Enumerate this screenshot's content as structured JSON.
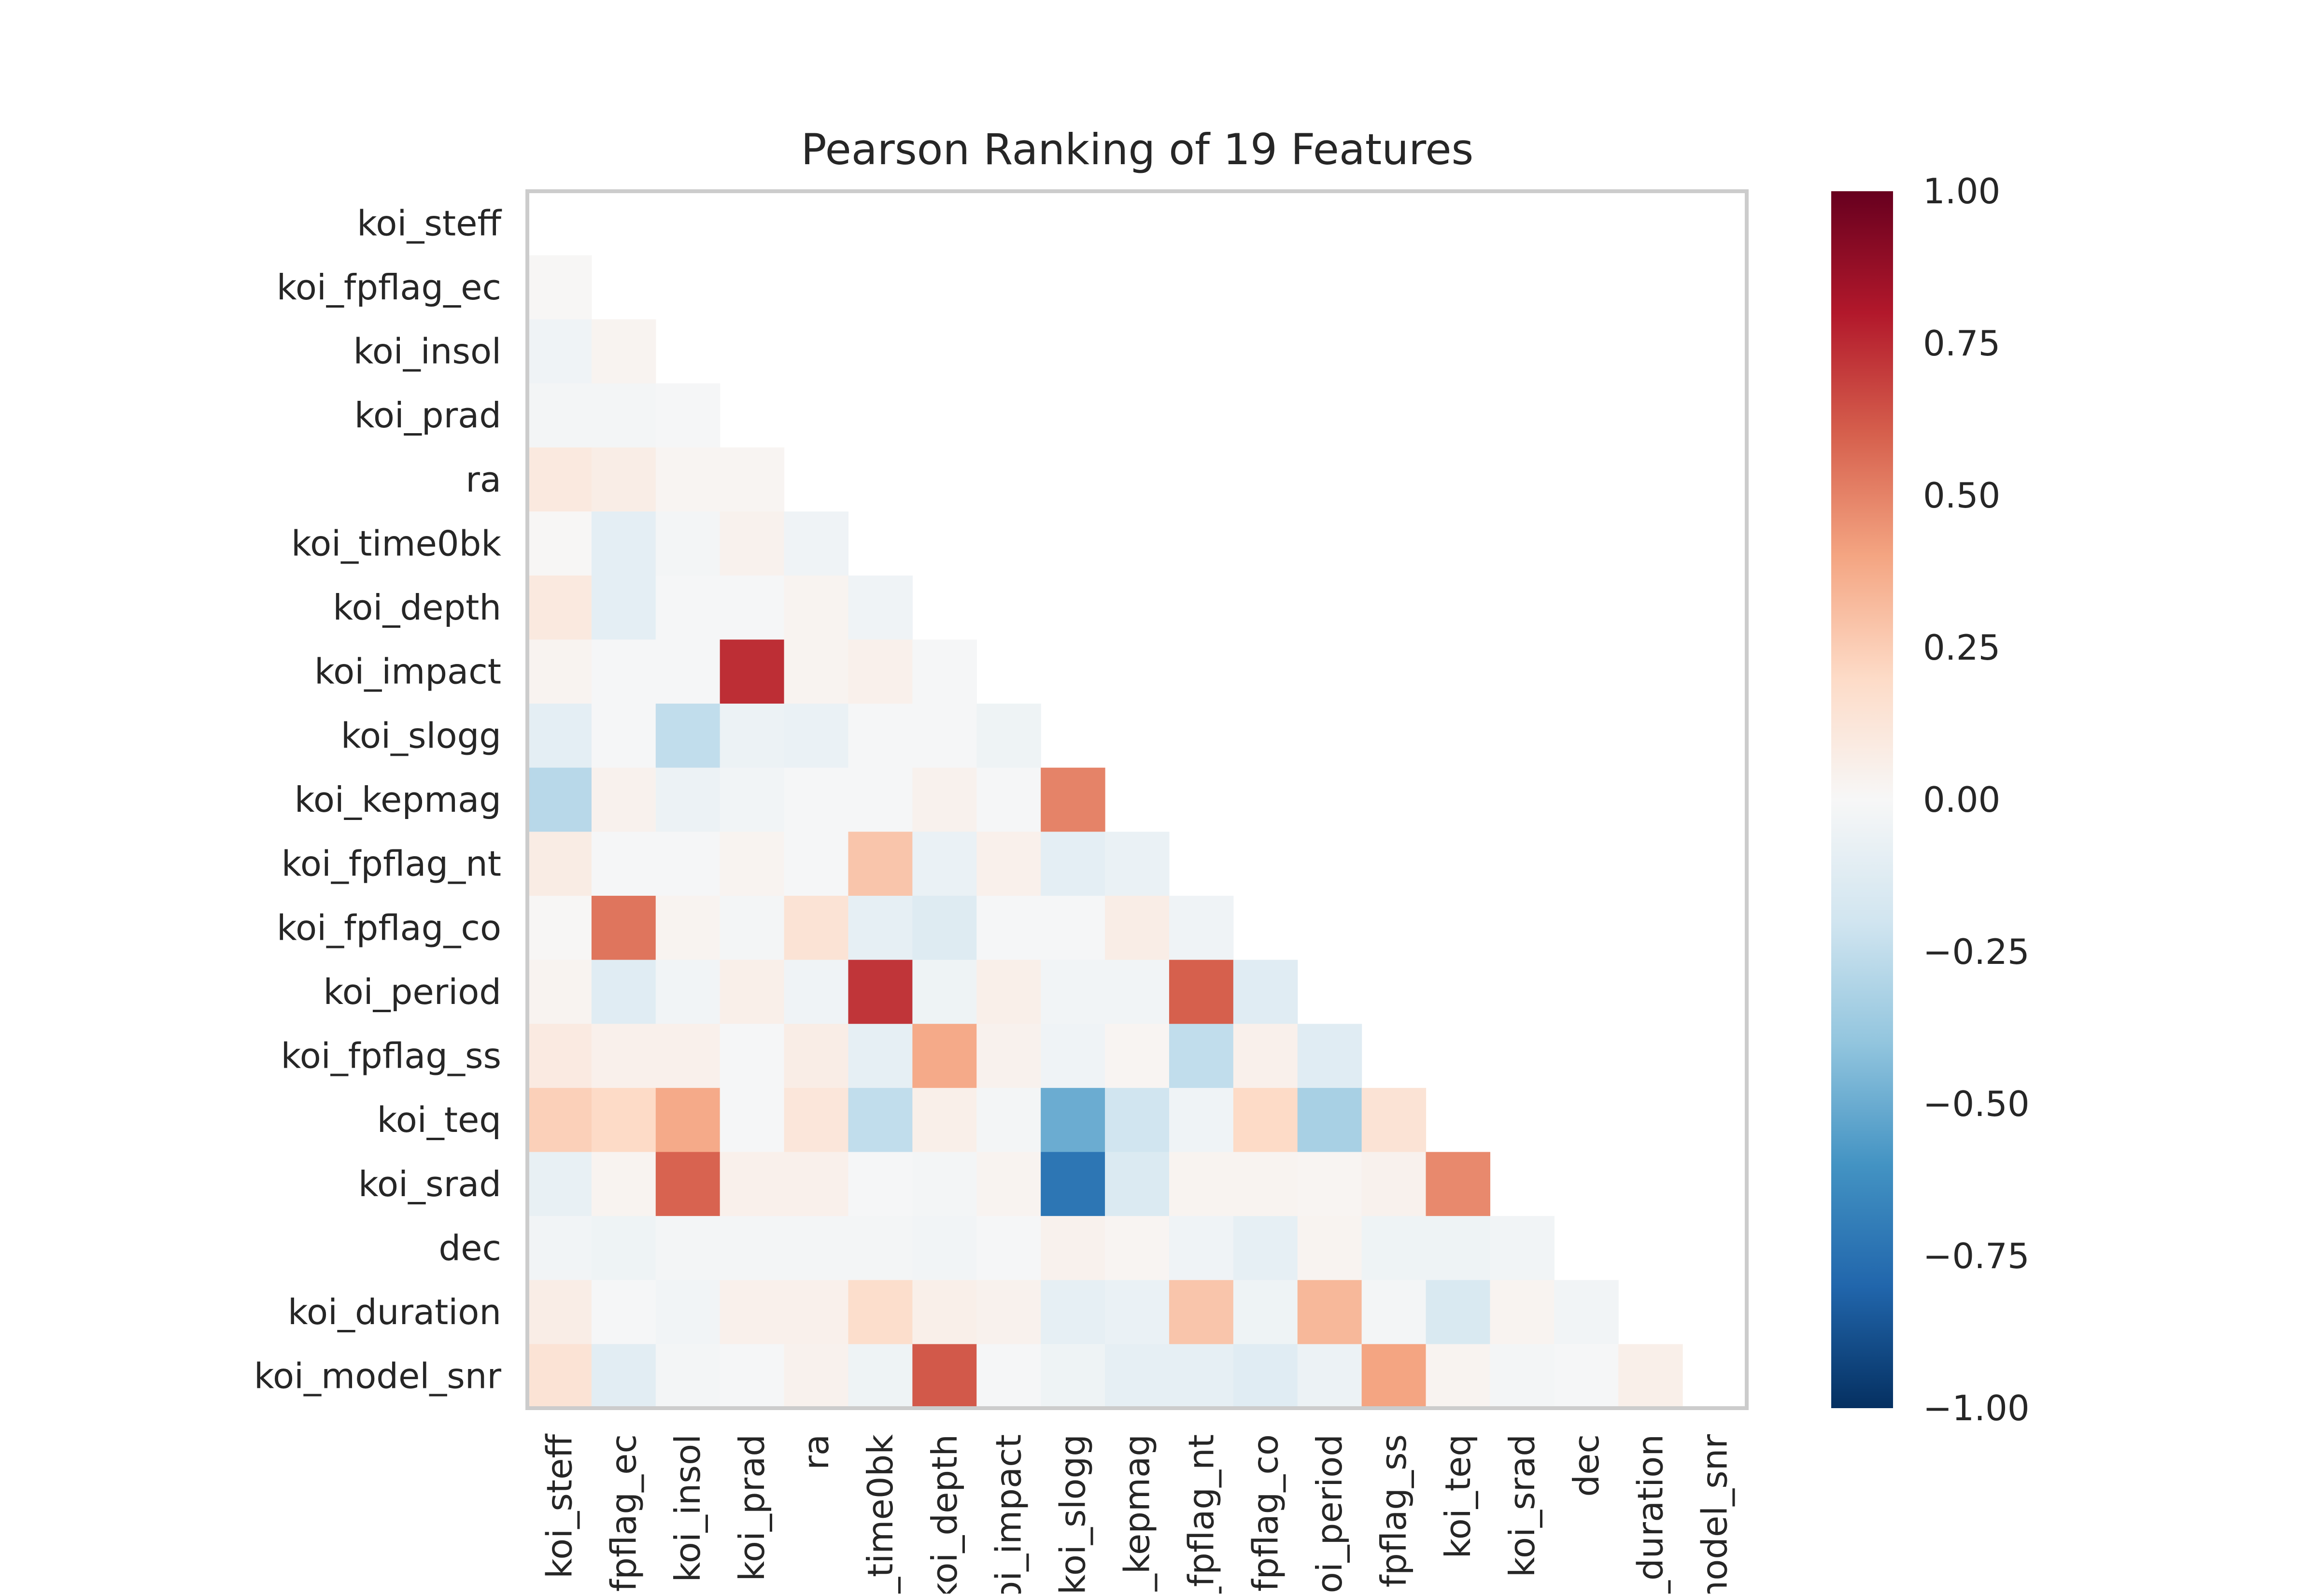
{
  "chart_data": {
    "type": "heatmap",
    "title": "Pearson Ranking of 19 Features",
    "features": [
      "koi_steff",
      "koi_fpflag_ec",
      "koi_insol",
      "koi_prad",
      "ra",
      "koi_time0bk",
      "koi_depth",
      "koi_impact",
      "koi_slogg",
      "koi_kepmag",
      "koi_fpflag_nt",
      "koi_fpflag_co",
      "koi_period",
      "koi_fpflag_ss",
      "koi_teq",
      "koi_srad",
      "dec",
      "koi_duration",
      "koi_model_snr"
    ],
    "x_tick_labels": [
      "koi_steff",
      "fpflag_ec",
      "koi_insol",
      "koi_prad",
      "ra",
      "i_time0bk",
      "koi_depth",
      "oi_impact",
      "koi_slogg",
      "_kepmag",
      "_fpflag_nt",
      "fpflag_co",
      "oi_period",
      "fpflag_ss",
      "koi_teq",
      "koi_srad",
      "dec",
      "_duration",
      "nodel_snr"
    ],
    "values": [
      [],
      [
        0.01
      ],
      [
        -0.04,
        0.03
      ],
      [
        -0.02,
        -0.02,
        -0.01
      ],
      [
        0.1,
        0.07,
        0.02,
        0.02
      ],
      [
        0.01,
        -0.1,
        -0.02,
        0.04,
        -0.04
      ],
      [
        0.1,
        -0.1,
        -0.01,
        -0.01,
        0.03,
        -0.04
      ],
      [
        0.03,
        -0.01,
        -0.01,
        0.74,
        0.03,
        0.05,
        -0.01
      ],
      [
        -0.1,
        -0.01,
        -0.25,
        -0.06,
        -0.07,
        -0.01,
        -0.01,
        -0.05
      ],
      [
        -0.28,
        0.04,
        -0.06,
        -0.03,
        -0.01,
        -0.01,
        0.04,
        -0.01,
        0.5
      ],
      [
        0.08,
        -0.01,
        -0.01,
        0.03,
        -0.01,
        0.28,
        -0.07,
        0.05,
        -0.1,
        -0.07
      ],
      [
        0.01,
        0.54,
        0.03,
        -0.02,
        0.14,
        -0.09,
        -0.13,
        -0.01,
        -0.01,
        0.07,
        -0.04
      ],
      [
        0.03,
        -0.12,
        -0.03,
        0.06,
        -0.04,
        0.72,
        -0.05,
        0.06,
        -0.03,
        -0.03,
        0.6,
        -0.12
      ],
      [
        0.09,
        0.05,
        0.05,
        -0.01,
        0.07,
        -0.09,
        0.38,
        0.04,
        -0.04,
        0.02,
        -0.25,
        0.05,
        -0.12
      ],
      [
        0.24,
        0.2,
        0.38,
        -0.01,
        0.12,
        -0.25,
        0.06,
        -0.02,
        -0.5,
        -0.2,
        -0.04,
        0.2,
        -0.33,
        0.14
      ],
      [
        -0.08,
        0.03,
        0.59,
        0.05,
        0.05,
        -0.01,
        -0.02,
        0.03,
        -0.73,
        -0.15,
        0.03,
        0.03,
        0.02,
        0.04,
        0.48
      ],
      [
        -0.03,
        -0.05,
        -0.02,
        -0.02,
        -0.02,
        -0.02,
        -0.03,
        -0.01,
        0.04,
        0.02,
        -0.04,
        -0.09,
        0.03,
        -0.05,
        -0.05,
        -0.03
      ],
      [
        0.07,
        -0.01,
        -0.03,
        0.05,
        0.05,
        0.18,
        0.06,
        0.04,
        -0.09,
        -0.07,
        0.28,
        -0.05,
        0.33,
        -0.02,
        -0.16,
        0.03,
        -0.03
      ],
      [
        0.14,
        -0.11,
        -0.02,
        -0.01,
        0.04,
        -0.05,
        0.62,
        -0.01,
        -0.05,
        -0.09,
        -0.09,
        -0.12,
        -0.06,
        0.4,
        0.03,
        -0.02,
        -0.01,
        0.06
      ]
    ],
    "vmin": -1.0,
    "vmax": 1.0,
    "colorbar": {
      "ticks": [
        1.0,
        0.75,
        0.5,
        0.25,
        0.0,
        -0.25,
        -0.5,
        -0.75,
        -1.0
      ],
      "tick_labels": [
        "1.00",
        "0.75",
        "0.50",
        "0.25",
        "0.00",
        "−0.25",
        "−0.50",
        "−0.75",
        "−1.00"
      ]
    },
    "colormap": [
      "#053061",
      "#2166ac",
      "#4393c3",
      "#92c5de",
      "#d1e5f0",
      "#f7f7f7",
      "#fddbc7",
      "#f4a582",
      "#d6604d",
      "#b2182b",
      "#67001f"
    ],
    "frame_color": "#cccccc",
    "grid": false
  }
}
